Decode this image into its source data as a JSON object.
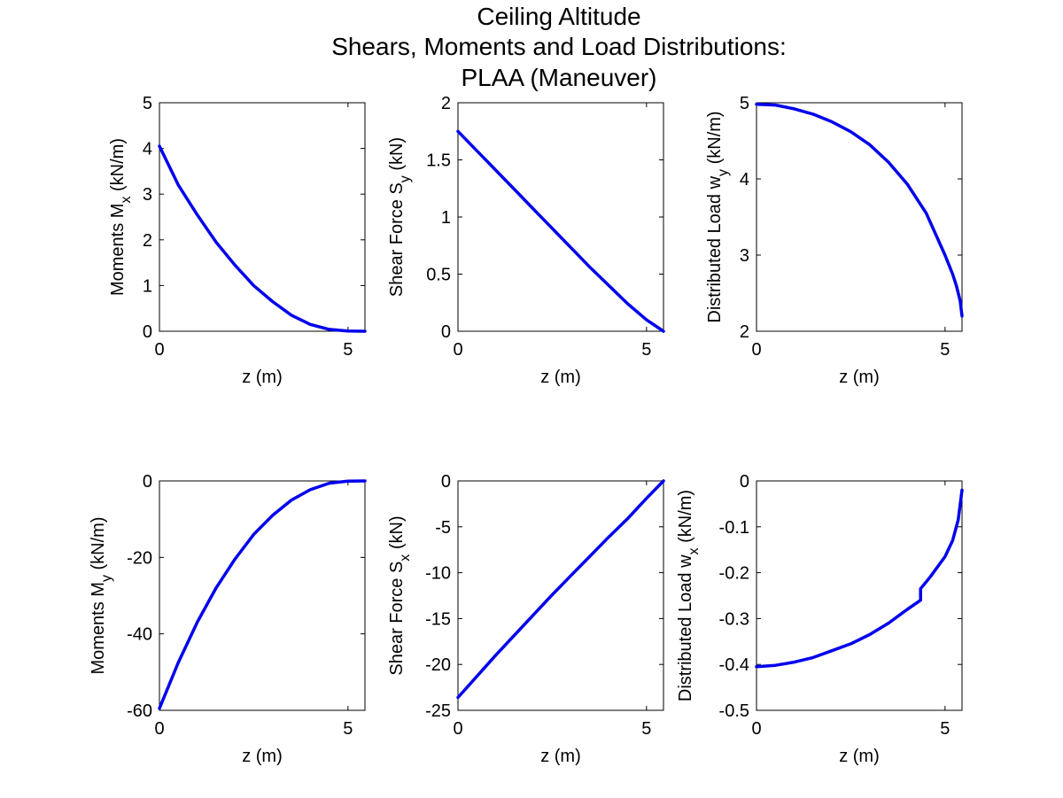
{
  "figure": {
    "title_lines": [
      "Ceiling Altitude",
      "Shears, Moments and Load Distributions:",
      "PLAA (Maneuver)"
    ],
    "line_color": "#0000ee"
  },
  "chart_data": [
    {
      "type": "line",
      "xlabel": "z (m)",
      "ylabel": {
        "main": "Moments M",
        "sub": "x",
        "tail": " (kN/m)"
      },
      "xlim": [
        0,
        5.45
      ],
      "ylim": [
        0,
        5
      ],
      "xticks": [
        0,
        5
      ],
      "xtick_labels": [
        "0",
        "5"
      ],
      "yticks": [
        0,
        1,
        2,
        3,
        4,
        5
      ],
      "ytick_labels": [
        "0",
        "1",
        "2",
        "3",
        "4",
        "5"
      ],
      "grid": false,
      "series": [
        {
          "x": [
            0,
            0.5,
            1.0,
            1.5,
            2.0,
            2.5,
            3.0,
            3.5,
            4.0,
            4.5,
            5.0,
            5.45
          ],
          "y": [
            4.05,
            3.2,
            2.55,
            1.95,
            1.45,
            1.0,
            0.65,
            0.35,
            0.15,
            0.04,
            0.005,
            0.0
          ]
        }
      ]
    },
    {
      "type": "line",
      "xlabel": "z (m)",
      "ylabel": {
        "main": "Shear Force S",
        "sub": "y",
        "tail": " (kN)"
      },
      "xlim": [
        0,
        5.45
      ],
      "ylim": [
        0,
        2
      ],
      "xticks": [
        0,
        5
      ],
      "xtick_labels": [
        "0",
        "5"
      ],
      "yticks": [
        0,
        0.5,
        1,
        1.5,
        2
      ],
      "ytick_labels": [
        "0",
        "0.5",
        "1",
        "1.5",
        "2"
      ],
      "grid": false,
      "series": [
        {
          "x": [
            0,
            0.5,
            1.0,
            1.5,
            2.0,
            2.5,
            3.0,
            3.5,
            4.0,
            4.5,
            5.0,
            5.45
          ],
          "y": [
            1.75,
            1.58,
            1.41,
            1.24,
            1.07,
            0.9,
            0.73,
            0.56,
            0.4,
            0.24,
            0.1,
            0.0
          ]
        }
      ]
    },
    {
      "type": "line",
      "xlabel": "z (m)",
      "ylabel": {
        "main": "Distributed Load w",
        "sub": "y",
        "tail": " (kN/m)"
      },
      "xlim": [
        0,
        5.45
      ],
      "ylim": [
        2,
        5
      ],
      "xticks": [
        0,
        5
      ],
      "xtick_labels": [
        "0",
        "5"
      ],
      "yticks": [
        2,
        3,
        4,
        5
      ],
      "ytick_labels": [
        "2",
        "3",
        "4",
        "5"
      ],
      "grid": false,
      "series": [
        {
          "x": [
            0,
            0.5,
            1.0,
            1.5,
            2.0,
            2.5,
            3.0,
            3.5,
            4.0,
            4.5,
            5.0,
            5.2,
            5.3,
            5.4,
            5.45
          ],
          "y": [
            4.98,
            4.97,
            4.92,
            4.85,
            4.75,
            4.62,
            4.45,
            4.22,
            3.93,
            3.55,
            3.0,
            2.75,
            2.6,
            2.4,
            2.2
          ]
        }
      ]
    },
    {
      "type": "line",
      "xlabel": "z (m)",
      "ylabel": {
        "main": "Moments M",
        "sub": "y",
        "tail": " (kN/m)"
      },
      "xlim": [
        0,
        5.45
      ],
      "ylim": [
        -60,
        0
      ],
      "xticks": [
        0,
        5
      ],
      "xtick_labels": [
        "0",
        "5"
      ],
      "yticks": [
        -60,
        -40,
        -20,
        0
      ],
      "ytick_labels": [
        "-60",
        "-40",
        "-20",
        "0"
      ],
      "grid": false,
      "series": [
        {
          "x": [
            0,
            0.5,
            1.0,
            1.5,
            2.0,
            2.5,
            3.0,
            3.5,
            4.0,
            4.5,
            5.0,
            5.45
          ],
          "y": [
            -59.5,
            -47.5,
            -37.0,
            -28.0,
            -20.5,
            -14.0,
            -9.0,
            -5.0,
            -2.3,
            -0.6,
            -0.05,
            0.0
          ]
        }
      ]
    },
    {
      "type": "line",
      "xlabel": "z (m)",
      "ylabel": {
        "main": "Shear Force S",
        "sub": "x",
        "tail": " (kN)"
      },
      "xlim": [
        0,
        5.45
      ],
      "ylim": [
        -25,
        0
      ],
      "xticks": [
        0,
        5
      ],
      "xtick_labels": [
        "0",
        "5"
      ],
      "yticks": [
        -25,
        -20,
        -15,
        -10,
        -5,
        0
      ],
      "ytick_labels": [
        "-25",
        "-20",
        "-15",
        "-10",
        "-5",
        "0"
      ],
      "grid": false,
      "series": [
        {
          "x": [
            0,
            0.5,
            1.0,
            1.5,
            2.0,
            2.5,
            3.0,
            3.5,
            4.0,
            4.5,
            5.0,
            5.45
          ],
          "y": [
            -23.6,
            -21.3,
            -19.0,
            -16.8,
            -14.6,
            -12.4,
            -10.3,
            -8.2,
            -6.1,
            -4.1,
            -1.9,
            0.0
          ]
        }
      ]
    },
    {
      "type": "line",
      "xlabel": "z (m)",
      "ylabel": {
        "main": "Distributed Load w",
        "sub": "x",
        "tail": " (kN/m)"
      },
      "xlim": [
        0,
        5.45
      ],
      "ylim": [
        -0.5,
        0
      ],
      "xticks": [
        0,
        5
      ],
      "xtick_labels": [
        "0",
        "5"
      ],
      "yticks": [
        -0.5,
        -0.4,
        -0.3,
        -0.2,
        -0.1,
        0
      ],
      "ytick_labels": [
        "-0.5",
        "-0.4",
        "-0.3",
        "-0.2",
        "-0.1",
        "0"
      ],
      "grid": false,
      "series": [
        {
          "x": [
            0,
            0.5,
            1.0,
            1.5,
            2.0,
            2.5,
            3.0,
            3.5,
            4.0,
            4.35,
            4.35,
            4.6,
            5.0,
            5.2,
            5.35,
            5.45
          ],
          "y": [
            -0.405,
            -0.402,
            -0.395,
            -0.385,
            -0.37,
            -0.355,
            -0.335,
            -0.31,
            -0.28,
            -0.26,
            -0.235,
            -0.21,
            -0.165,
            -0.13,
            -0.085,
            -0.02
          ]
        }
      ]
    }
  ]
}
